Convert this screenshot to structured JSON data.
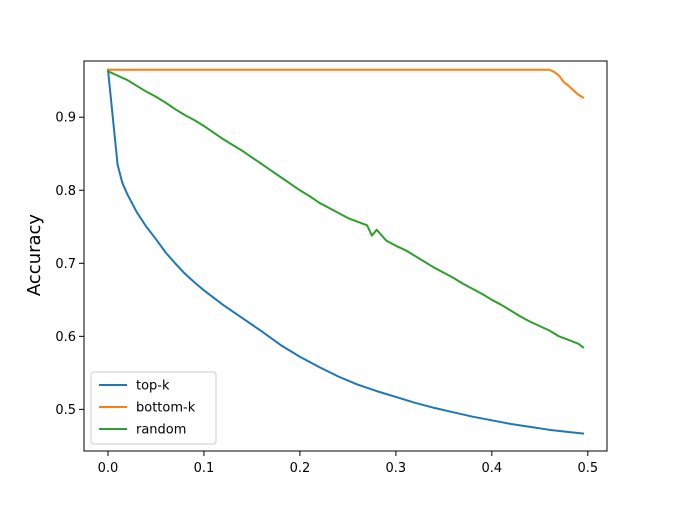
{
  "chart_data": {
    "type": "line",
    "title": "",
    "xlabel": "",
    "ylabel": "Accuracy",
    "xlim": [
      -0.025,
      0.52
    ],
    "ylim": [
      0.443,
      0.977
    ],
    "xticks": [
      0.0,
      0.1,
      0.2,
      0.3,
      0.4,
      0.5
    ],
    "xtick_labels": [
      "0.0",
      "0.1",
      "0.2",
      "0.3",
      "0.4",
      "0.5"
    ],
    "yticks": [
      0.5,
      0.6,
      0.7,
      0.8,
      0.9
    ],
    "ytick_labels": [
      "0.5",
      "0.6",
      "0.7",
      "0.8",
      "0.9"
    ],
    "grid": false,
    "legend_position": "lower-left",
    "series": [
      {
        "name": "top-k",
        "color": "#1f77b4",
        "x": [
          0.0,
          0.005,
          0.01,
          0.015,
          0.02,
          0.03,
          0.04,
          0.05,
          0.06,
          0.07,
          0.08,
          0.09,
          0.1,
          0.12,
          0.14,
          0.16,
          0.18,
          0.2,
          0.22,
          0.24,
          0.26,
          0.28,
          0.3,
          0.32,
          0.34,
          0.36,
          0.38,
          0.4,
          0.42,
          0.44,
          0.46,
          0.48,
          0.495
        ],
        "y": [
          0.965,
          0.9,
          0.835,
          0.81,
          0.795,
          0.77,
          0.75,
          0.733,
          0.715,
          0.7,
          0.686,
          0.674,
          0.663,
          0.643,
          0.625,
          0.607,
          0.588,
          0.572,
          0.558,
          0.545,
          0.534,
          0.525,
          0.517,
          0.509,
          0.502,
          0.496,
          0.49,
          0.485,
          0.48,
          0.476,
          0.472,
          0.469,
          0.467
        ]
      },
      {
        "name": "bottom-k",
        "color": "#ff7f0e",
        "x": [
          0.0,
          0.1,
          0.2,
          0.3,
          0.4,
          0.45,
          0.46,
          0.465,
          0.47,
          0.475,
          0.48,
          0.485,
          0.49,
          0.495
        ],
        "y": [
          0.965,
          0.965,
          0.965,
          0.965,
          0.965,
          0.965,
          0.965,
          0.962,
          0.957,
          0.948,
          0.943,
          0.937,
          0.931,
          0.927
        ]
      },
      {
        "name": "random",
        "color": "#2ca02c",
        "x": [
          0.0,
          0.01,
          0.02,
          0.03,
          0.04,
          0.05,
          0.06,
          0.07,
          0.08,
          0.09,
          0.1,
          0.11,
          0.12,
          0.13,
          0.14,
          0.15,
          0.16,
          0.17,
          0.18,
          0.19,
          0.2,
          0.21,
          0.22,
          0.23,
          0.24,
          0.25,
          0.26,
          0.27,
          0.275,
          0.28,
          0.29,
          0.3,
          0.31,
          0.32,
          0.33,
          0.34,
          0.35,
          0.36,
          0.37,
          0.38,
          0.39,
          0.4,
          0.41,
          0.42,
          0.43,
          0.44,
          0.45,
          0.46,
          0.47,
          0.48,
          0.49,
          0.495
        ],
        "y": [
          0.963,
          0.957,
          0.951,
          0.943,
          0.935,
          0.928,
          0.92,
          0.911,
          0.903,
          0.896,
          0.888,
          0.879,
          0.87,
          0.862,
          0.854,
          0.845,
          0.836,
          0.827,
          0.818,
          0.809,
          0.8,
          0.792,
          0.783,
          0.776,
          0.769,
          0.762,
          0.757,
          0.752,
          0.738,
          0.746,
          0.731,
          0.724,
          0.718,
          0.71,
          0.702,
          0.694,
          0.687,
          0.68,
          0.672,
          0.665,
          0.658,
          0.65,
          0.643,
          0.635,
          0.627,
          0.62,
          0.614,
          0.608,
          0.6,
          0.595,
          0.59,
          0.585
        ]
      }
    ]
  }
}
